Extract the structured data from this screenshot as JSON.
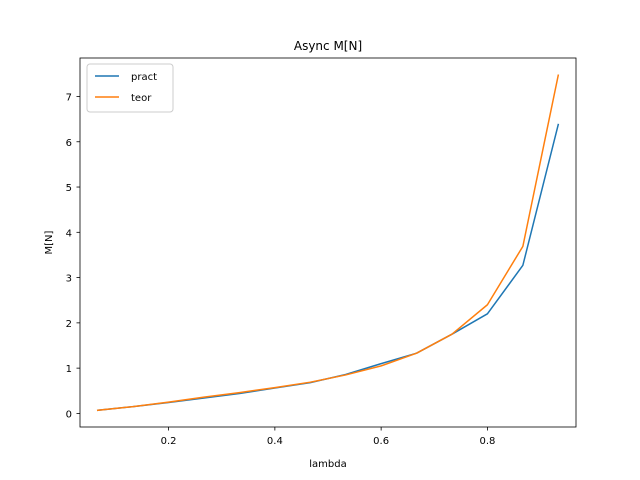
{
  "chart_data": {
    "type": "line",
    "title": "Async M[N]",
    "xlabel": "lambda",
    "ylabel": "M[N]",
    "xlim": [
      0.0333,
      0.9667
    ],
    "ylim": [
      -0.3,
      7.85
    ],
    "xticks": [
      0.2,
      0.4,
      0.6,
      0.8
    ],
    "xtick_labels": [
      "0.2",
      "0.4",
      "0.6",
      "0.8"
    ],
    "yticks": [
      0,
      1,
      2,
      3,
      4,
      5,
      6,
      7
    ],
    "ytick_labels": [
      "0",
      "1",
      "2",
      "3",
      "4",
      "5",
      "6",
      "7"
    ],
    "grid": false,
    "legend_position": "top-left",
    "x": [
      0.0667,
      0.1333,
      0.2,
      0.2667,
      0.3333,
      0.4,
      0.4667,
      0.5333,
      0.6,
      0.6667,
      0.7333,
      0.8,
      0.8667,
      0.9333
    ],
    "series": [
      {
        "name": "pract",
        "color": "#1f77b4",
        "values": [
          0.07,
          0.15,
          0.24,
          0.34,
          0.44,
          0.56,
          0.68,
          0.86,
          1.1,
          1.33,
          1.75,
          2.2,
          3.27,
          6.38
        ]
      },
      {
        "name": "teor",
        "color": "#ff7f0e",
        "values": [
          0.07,
          0.15,
          0.25,
          0.36,
          0.46,
          0.57,
          0.69,
          0.85,
          1.05,
          1.33,
          1.75,
          2.4,
          3.69,
          7.47
        ]
      }
    ]
  }
}
